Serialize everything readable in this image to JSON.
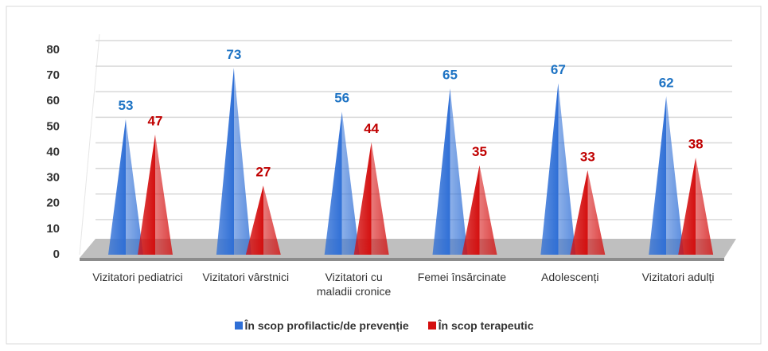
{
  "chart_data": {
    "type": "bar",
    "categories": [
      "Vizitatori pediatrici",
      "Vizitatori vârstnici",
      "Vizitatori cu maladii cronice",
      "Femei însărcinate",
      "Adolescenți",
      "Vizitatori adulți"
    ],
    "series": [
      {
        "name": "În scop profilactic/de prevenție",
        "color": "#2f6fd6",
        "label_color": "#1f74c4",
        "values": [
          53,
          73,
          56,
          65,
          67,
          62
        ]
      },
      {
        "name": "În scop terapeutic",
        "color": "#d40f0f",
        "label_color": "#c00000",
        "values": [
          47,
          27,
          44,
          35,
          33,
          38
        ]
      }
    ],
    "ylim": [
      0,
      80
    ],
    "yticks": [
      0,
      10,
      20,
      30,
      40,
      50,
      60,
      70,
      80
    ],
    "grid": true,
    "legend": "bottom"
  }
}
